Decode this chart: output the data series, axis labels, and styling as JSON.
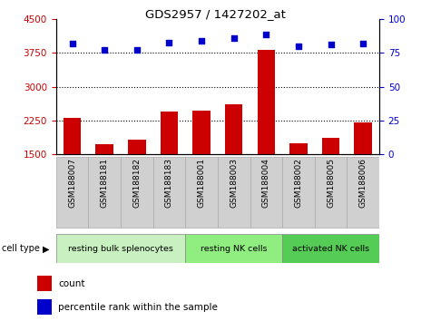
{
  "title": "GDS2957 / 1427202_at",
  "samples": [
    "GSM188007",
    "GSM188181",
    "GSM188182",
    "GSM188183",
    "GSM188001",
    "GSM188003",
    "GSM188004",
    "GSM188002",
    "GSM188005",
    "GSM188006"
  ],
  "count_values": [
    2300,
    1720,
    1820,
    2450,
    2460,
    2600,
    3820,
    1750,
    1870,
    2200
  ],
  "percentile_values": [
    82,
    77,
    77,
    83,
    84,
    86,
    89,
    80,
    81,
    82
  ],
  "groups": [
    {
      "label": "resting bulk splenocytes",
      "start": 0,
      "end": 4,
      "color": "#c8f0c0"
    },
    {
      "label": "resting NK cells",
      "start": 4,
      "end": 7,
      "color": "#90ee80"
    },
    {
      "label": "activated NK cells",
      "start": 7,
      "end": 10,
      "color": "#55cc55"
    }
  ],
  "cell_type_label": "cell type",
  "ylim_left": [
    1500,
    4500
  ],
  "ylim_right": [
    0,
    100
  ],
  "yticks_left": [
    1500,
    2250,
    3000,
    3750,
    4500
  ],
  "yticks_right": [
    0,
    25,
    50,
    75,
    100
  ],
  "hgrid_values": [
    2250,
    3000,
    3750
  ],
  "bar_color": "#cc0000",
  "dot_color": "#0000cc",
  "legend_count_label": "count",
  "legend_pct_label": "percentile rank within the sample",
  "tick_bg_color": "#d0d0d0",
  "plot_bg": "white",
  "fig_bg": "white"
}
